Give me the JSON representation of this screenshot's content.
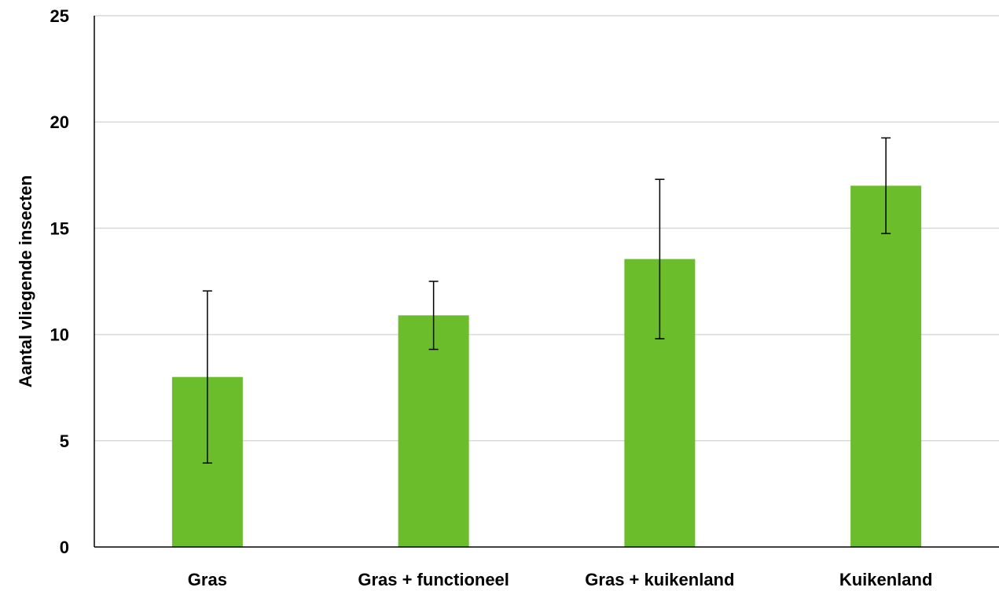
{
  "chart_data": {
    "type": "bar",
    "title": "",
    "xlabel": "",
    "ylabel": "Aantal vliegende insecten",
    "categories": [
      "Gras",
      "Gras + functioneel",
      "Gras + kuikenland",
      "Kuikenland"
    ],
    "values": [
      8.0,
      10.9,
      13.55,
      17.0
    ],
    "error_low": [
      3.95,
      9.3,
      9.8,
      14.75
    ],
    "error_high": [
      12.05,
      12.5,
      17.3,
      19.25
    ],
    "ylim": [
      0,
      25
    ],
    "yticks": [
      "0",
      "5",
      "10",
      "15",
      "20",
      "25"
    ],
    "grid": true,
    "legend": "none",
    "bar_color": "#6bbd2b",
    "grid_color": "#d9d9d9",
    "axis_color": "#000000",
    "errorbar_color": "#000000"
  }
}
